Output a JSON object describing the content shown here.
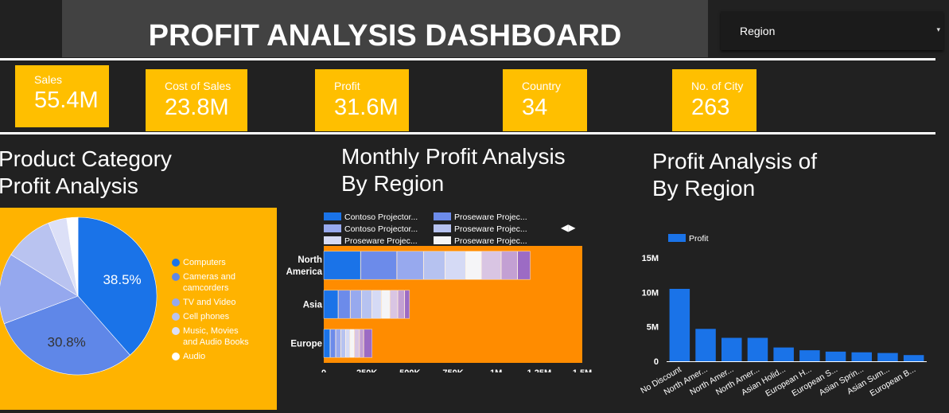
{
  "header": {
    "title": "PROFIT ANALYSIS DASHBOARD",
    "filter": {
      "label": "Region",
      "caret": "▾"
    }
  },
  "kpis": [
    {
      "label": "Sales",
      "value": "55.4M"
    },
    {
      "label": "Cost of Sales",
      "value": "23.8M"
    },
    {
      "label": "Profit",
      "value": "31.6M"
    },
    {
      "label": "Country",
      "value": "34"
    },
    {
      "label": "No. of City",
      "value": "263"
    }
  ],
  "pie_card": {
    "title_line1": "Product Category",
    "title_line2": "Profit Analysis"
  },
  "bar_card": {
    "title_line1": "Monthly Profit Analysis",
    "title_line2": "By Region"
  },
  "column_card": {
    "title_line1": "Profit Analysis of",
    "title_line2": "By Region"
  },
  "colors": {
    "accent": "#FFBF00",
    "orange": "#FF8C00",
    "blue": "#1A73E8"
  },
  "chart_data": [
    {
      "type": "pie",
      "labels": [
        "Computers",
        "Cameras and camcorders",
        "TV and Video",
        "Cell phones",
        "Music, Movies and Audio Books",
        "Audio"
      ],
      "legend_lines": [
        [
          "Computers"
        ],
        [
          "Cameras and",
          "camcorders"
        ],
        [
          "TV and Video"
        ],
        [
          "Cell phones"
        ],
        [
          "Music, Movies",
          "and Audio Books"
        ],
        [
          "Audio"
        ]
      ],
      "values": [
        38.5,
        30.8,
        14.5,
        10.1,
        3.8,
        2.3
      ],
      "data_labels": [
        "38.5%",
        "30.8%",
        "",
        "",
        "",
        ""
      ],
      "colors": [
        "#1A73E8",
        "#5F87E8",
        "#95A8EE",
        "#B9C3F0",
        "#DCE0F7",
        "#FFFFFF"
      ],
      "legend": "right"
    },
    {
      "type": "bar",
      "orientation": "horizontal",
      "stacked": true,
      "categories": [
        "North America",
        "Asia",
        "Europe"
      ],
      "category_lines": [
        [
          "North",
          "America"
        ],
        [
          "Asia"
        ],
        [
          "Europe"
        ]
      ],
      "legend_labels": [
        "Contoso Projector...",
        "Proseware Projec...",
        "Contoso Projector...",
        "Proseware Projec...",
        "Proseware Projec...",
        "Proseware Projec..."
      ],
      "legend_nav": "◀▶",
      "series": [
        {
          "name": "Contoso Projector...",
          "color": "#1A73E8",
          "values": [
            215000,
            85000,
            38000
          ]
        },
        {
          "name": "Proseware Projec...",
          "color": "#6C8BEA",
          "values": [
            210000,
            70000,
            32000
          ]
        },
        {
          "name": "Contoso Projector...",
          "color": "#97A9EE",
          "values": [
            155000,
            65000,
            30000
          ]
        },
        {
          "name": "Proseware Projec...",
          "color": "#B6C2F0",
          "values": [
            125000,
            60000,
            28000
          ]
        },
        {
          "name": "Proseware Projec...",
          "color": "#D5DAF5",
          "values": [
            120000,
            55000,
            25000
          ]
        },
        {
          "name": "Proseware Projec...",
          "color": "#F5F5F7",
          "values": [
            90000,
            50000,
            25000
          ]
        },
        {
          "color": "#D9C5E3",
          "values": [
            115000,
            45000,
            30000
          ]
        },
        {
          "color": "#C3A0D3",
          "values": [
            95000,
            40000,
            25000
          ]
        },
        {
          "color": "#9C6BC4",
          "values": [
            75000,
            30000,
            50000
          ]
        }
      ],
      "x_ticks": [
        "0",
        "250K",
        "500K",
        "750K",
        "1M",
        "1.25M",
        "1.5M"
      ],
      "xlim": [
        0,
        1500000
      ]
    },
    {
      "type": "bar",
      "categories": [
        "No Discount",
        "North Amer...",
        "North Amer...",
        "North Amer...",
        "Asian Holid...",
        "European H...",
        "European S...",
        "Asian Sprin...",
        "Asian Sum...",
        "European B..."
      ],
      "series": [
        {
          "name": "Profit",
          "color": "#1A73E8",
          "values": [
            10500000,
            4700000,
            3400000,
            3400000,
            2000000,
            1600000,
            1400000,
            1300000,
            1200000,
            900000
          ]
        }
      ],
      "y_ticks": [
        "0",
        "5M",
        "10M",
        "15M"
      ],
      "ylim": [
        0,
        15000000
      ],
      "legend": "top-left"
    }
  ]
}
